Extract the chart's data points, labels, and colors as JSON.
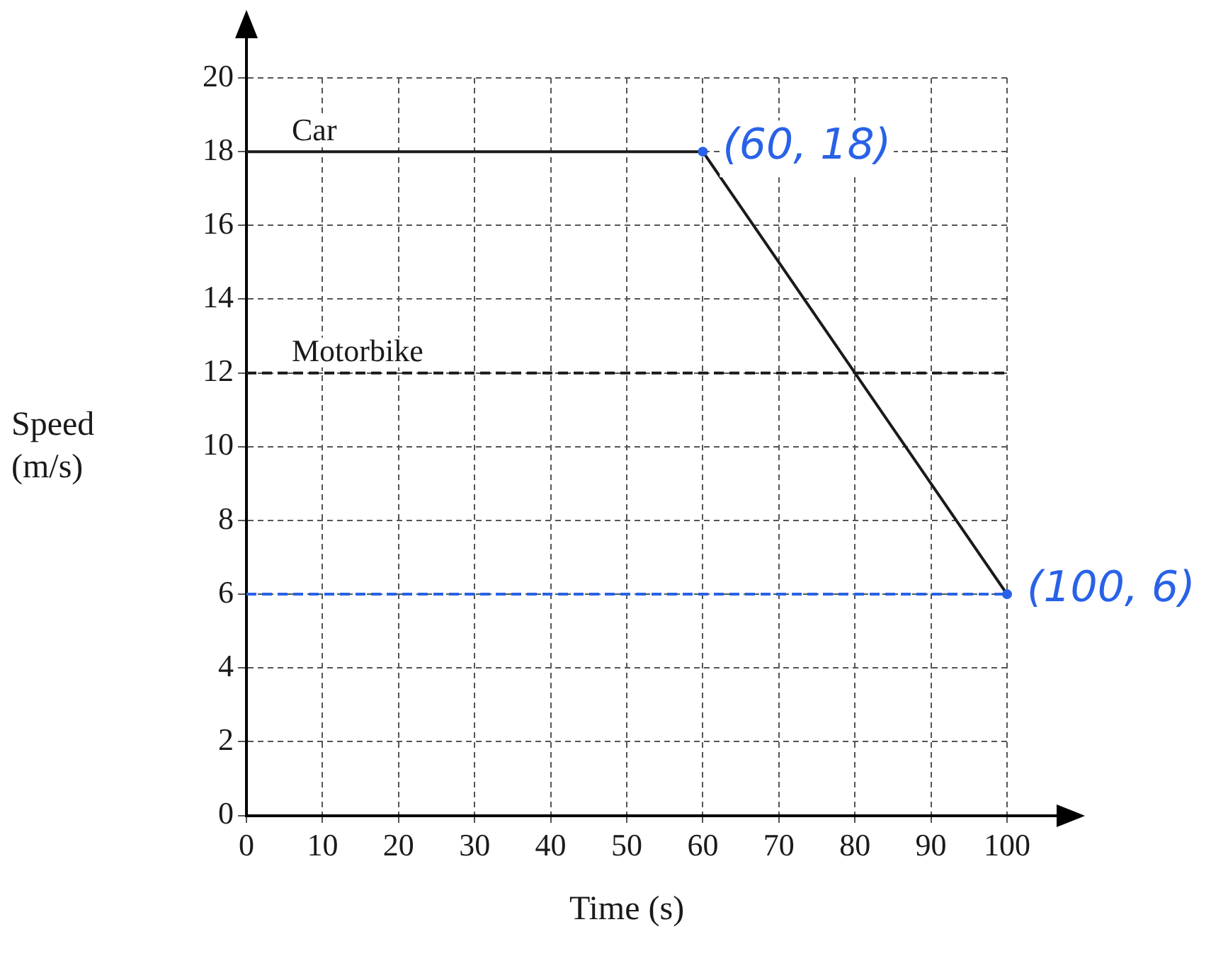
{
  "chart_data": {
    "type": "line",
    "xlabel": "Time (s)",
    "ylabel": "Speed (m/s)",
    "series": [
      {
        "name": "Car",
        "color": "#1a1a1a",
        "x": [
          0,
          60,
          100
        ],
        "values": [
          18,
          18,
          6
        ],
        "line_style": "solid"
      },
      {
        "name": "Motorbike",
        "color": "#1a1a1a",
        "x": [
          0,
          100
        ],
        "values": [
          12,
          12
        ],
        "line_style": "dashed"
      }
    ],
    "xlim": [
      0,
      100
    ],
    "xticks": [
      0,
      10,
      20,
      30,
      40,
      50,
      60,
      70,
      80,
      90,
      100
    ],
    "ylim": [
      0,
      20
    ],
    "yticks": [
      0,
      2,
      4,
      6,
      8,
      10,
      12,
      14,
      16,
      18,
      20
    ],
    "grid": true,
    "legend": false,
    "ref_lines": [
      {
        "axis": "y",
        "value": 6,
        "color": "#2962e8",
        "line_style": "dashed"
      }
    ],
    "annotations": [
      {
        "text": "(60, 18)",
        "x": 60,
        "y": 18
      },
      {
        "text": "(100, 6)",
        "x": 100,
        "y": 6
      }
    ]
  }
}
